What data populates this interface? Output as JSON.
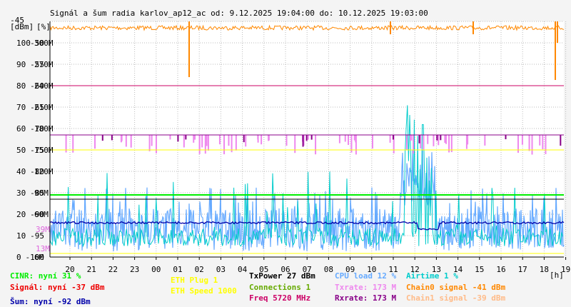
{
  "chart_data": {
    "type": "line",
    "title": "Signál a šum radia karlov_ap12_ac od: 9.12.2025 19:04:00 do: 10.12.2025 19:03:00",
    "unit_labels": [
      "[dBm]",
      "[%]"
    ],
    "xunit": "[h]",
    "x_ticks": [
      "20",
      "21",
      "22",
      "23",
      "00",
      "01",
      "02",
      "03",
      "04",
      "05",
      "06",
      "07",
      "08",
      "09",
      "10",
      "11",
      "12",
      "13",
      "14",
      "15",
      "16",
      "17",
      "18",
      "19"
    ],
    "y_ticks": [
      {
        "dbm": "-45",
        "pct": "",
        "mbit": ""
      },
      {
        "dbm": "-50",
        "pct": "100",
        "mbit": "300M"
      },
      {
        "dbm": "-55",
        "pct": "90",
        "mbit": "270M"
      },
      {
        "dbm": "-60",
        "pct": "80",
        "mbit": "240M"
      },
      {
        "dbm": "-65",
        "pct": "70",
        "mbit": "210M"
      },
      {
        "dbm": "-70",
        "pct": "60",
        "mbit": "180M"
      },
      {
        "dbm": "-75",
        "pct": "50",
        "mbit": "150M"
      },
      {
        "dbm": "-80",
        "pct": "40",
        "mbit": "120M"
      },
      {
        "dbm": "-85",
        "pct": "30",
        "mbit": "90M"
      },
      {
        "dbm": "-90",
        "pct": "20",
        "mbit": "60M"
      },
      {
        "dbm": "-95",
        "pct": "10",
        "mbit": ""
      },
      {
        "dbm": "-100",
        "pct": "0",
        "mbit": "6M"
      }
    ],
    "extra_ticks": [
      {
        "text": "39M",
        "color": "#dd66dd"
      },
      {
        "text": "13M",
        "color": "#dd66dd"
      }
    ],
    "ylim_dbm": [
      -100,
      -45
    ],
    "series": [
      {
        "name": "Signál",
        "color": "#ff0000",
        "value": -37
      },
      {
        "name": "Šum",
        "color": "#0000aa",
        "value": -92
      },
      {
        "name": "CINR",
        "color": "#00ee00",
        "value": 31
      },
      {
        "name": "ETH Plug",
        "color": "#ffff00",
        "value": 1
      },
      {
        "name": "ETH Speed",
        "color": "#ffff00",
        "value": 1000
      },
      {
        "name": "TxPower",
        "color": "#000000",
        "value": 27
      },
      {
        "name": "Connections",
        "color": "#66aa00",
        "value": 1
      },
      {
        "name": "Freq",
        "color": "#cc0066",
        "value": 5720
      },
      {
        "name": "CPU load",
        "color": "#66aaff",
        "value": 12
      },
      {
        "name": "Txrate",
        "color": "#ee88ee",
        "value": 173
      },
      {
        "name": "Rxrate",
        "color": "#880088",
        "value": 173
      },
      {
        "name": "Airtime",
        "color": "#00cccc",
        "value": 1
      },
      {
        "name": "Chain0 signal",
        "color": "#ff8800",
        "value": -41
      },
      {
        "name": "Chain1 signal",
        "color": "#ffbb88",
        "value": -39
      }
    ],
    "hlines": [
      {
        "name": "Freq",
        "dbm": -60,
        "color": "#cc0066"
      },
      {
        "name": "Rxrate",
        "dbm": -71.5,
        "color": "#880088"
      },
      {
        "name": "ETH Speed",
        "dbm": -75,
        "color": "#ffff00"
      },
      {
        "name": "CINR",
        "dbm": -85.5,
        "color": "#00ee00"
      },
      {
        "name": "TxPower",
        "dbm": -86.5,
        "color": "#000000"
      }
    ]
  },
  "legend": {
    "cinr": "CINR: nyní 31 %",
    "signal": "Signál: nyní -37 dBm",
    "noise": "Šum: nyní -92 dBm",
    "eth_plug": "ETH Plug 1",
    "eth_speed": "ETH Speed 1000",
    "txpower": "TxPower 27 dBm",
    "connections": "Connections 1",
    "freq": "Freq 5720 MHz",
    "cpu": "CPU load 12 %",
    "txrate": "Txrate: 173 M",
    "rxrate": "Rxrate: 173 M",
    "airtime": "Airtime 1 %",
    "chain0": "Chain0 signal -41 dBm",
    "chain1": "Chain1 signal -39 dBm"
  },
  "colors": {
    "background": "#f4f4f4",
    "plot_bg": "#ffffff",
    "grid": "#bbbbbb"
  }
}
